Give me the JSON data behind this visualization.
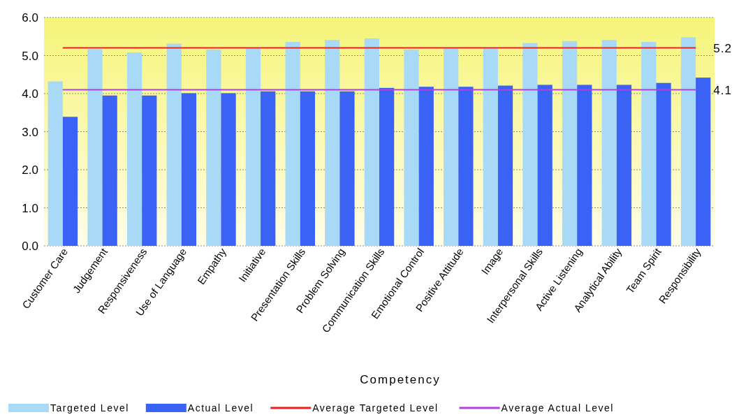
{
  "chart_data": {
    "type": "bar",
    "xlabel": "Competency",
    "categories": [
      "Customer Care",
      "Judgement",
      "Responsiveness",
      "Use of Language",
      "Empathy",
      "Initiative",
      "Presentation Skills",
      "Problem Solving",
      "Communication Skills",
      "Emotional Control",
      "Positive Attitude",
      "Image",
      "Interpersonal Skills",
      "Active Listening",
      "Analytical Ability",
      "Team Spirit",
      "Responsibility"
    ],
    "series": [
      {
        "name": "Targeted Level",
        "color": "#a8daf8",
        "values": [
          4.32,
          5.17,
          5.08,
          5.31,
          5.16,
          5.2,
          5.36,
          5.41,
          5.45,
          5.16,
          5.2,
          5.2,
          5.33,
          5.38,
          5.41,
          5.36,
          5.48
        ]
      },
      {
        "name": "Actual Level",
        "color": "#3a62f5",
        "values": [
          3.39,
          3.95,
          3.95,
          4.01,
          4.01,
          4.06,
          4.06,
          4.06,
          4.15,
          4.18,
          4.18,
          4.21,
          4.23,
          4.23,
          4.23,
          4.28,
          4.42
        ]
      },
      {
        "name": "Average Targeted Level",
        "type": "line",
        "color": "#ee2222",
        "values": [
          5.2,
          5.2,
          5.2,
          5.2,
          5.2,
          5.2,
          5.2,
          5.2,
          5.2,
          5.2,
          5.2,
          5.2,
          5.2,
          5.2,
          5.2,
          5.2,
          5.2
        ],
        "value_labels": [
          null,
          null,
          null,
          null,
          null,
          null,
          null,
          null,
          null,
          null,
          null,
          null,
          null,
          null,
          null,
          null,
          "5.2"
        ]
      },
      {
        "name": "Average Actual Level",
        "type": "line",
        "color": "#b040e0",
        "values": [
          4.1,
          4.1,
          4.1,
          4.1,
          4.1,
          4.1,
          4.1,
          4.1,
          4.1,
          4.1,
          4.1,
          4.1,
          4.1,
          4.1,
          4.1,
          4.1,
          4.1
        ],
        "value_labels": [
          null,
          null,
          null,
          null,
          null,
          null,
          null,
          null,
          null,
          null,
          null,
          null,
          null,
          null,
          null,
          null,
          "4.1"
        ]
      }
    ],
    "ylim": [
      0,
      6
    ],
    "yticks": [
      {
        "value": 0,
        "label": "0.0"
      },
      {
        "value": 1,
        "label": "1.0"
      },
      {
        "value": 2,
        "label": "2.0"
      },
      {
        "value": 3,
        "label": "3.0"
      },
      {
        "value": 4,
        "label": "4.0"
      },
      {
        "value": 5,
        "label": "5.0"
      },
      {
        "value": 6,
        "label": "6.0"
      }
    ],
    "grid": "y",
    "legend": "bottom",
    "marker": "none",
    "line_style": "solid"
  }
}
